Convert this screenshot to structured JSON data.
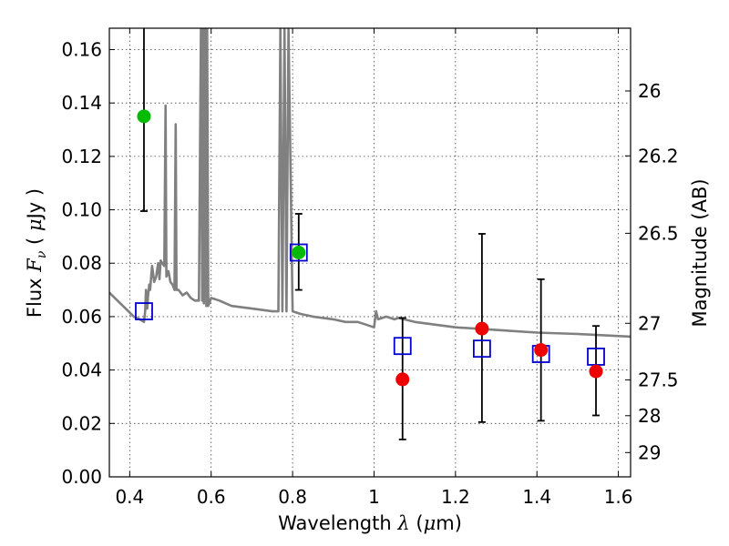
{
  "chart_data": {
    "type": "scatter",
    "xlabel": "Wavelength",
    "xlabel_symbol": "λ",
    "xlabel_unit_open": "(",
    "xlabel_unit_mu": "μ",
    "xlabel_unit_rest": "m)",
    "ylabel": "Flux",
    "ylabel_symbol": "F",
    "ylabel_sub": "ν",
    "ylabel_unit_open": "(",
    "ylabel_unit_mu": "μ",
    "ylabel_unit_rest": "Jy )",
    "y2label": "Magnitude (AB)",
    "xlim": [
      0.35,
      1.63
    ],
    "ylim": [
      0.0,
      0.168
    ],
    "grid": true,
    "x_ticks": [
      0.4,
      0.6,
      0.8,
      1.0,
      1.2,
      1.4,
      1.6
    ],
    "x_tick_labels": [
      "0.4",
      "0.6",
      "0.8",
      "1",
      "1.2",
      "1.4",
      "1.6"
    ],
    "y_ticks": [
      0.0,
      0.02,
      0.04,
      0.06,
      0.08,
      0.1,
      0.12,
      0.14,
      0.16
    ],
    "y_tick_labels": [
      "0.00",
      "0.02",
      "0.04",
      "0.06",
      "0.08",
      "0.10",
      "0.12",
      "0.14",
      "0.16"
    ],
    "y2_ticks": [
      {
        "label": "26",
        "flux": 0.1445
      },
      {
        "label": "26.2",
        "flux": 0.1202
      },
      {
        "label": "26.5",
        "flux": 0.0912
      },
      {
        "label": "27",
        "flux": 0.0575
      },
      {
        "label": "27.5",
        "flux": 0.0363
      },
      {
        "label": "28",
        "flux": 0.0229
      },
      {
        "label": "29",
        "flux": 0.0091
      }
    ],
    "colors": {
      "model": "#808080",
      "model_flux": "#0000cc",
      "observed_green": "#00bb00",
      "observed_red": "#ee0000",
      "errorbar": "#000000"
    },
    "model_spectrum": {
      "x": [
        0.35,
        0.37,
        0.39,
        0.41,
        0.425,
        0.435,
        0.438,
        0.44,
        0.443,
        0.445,
        0.448,
        0.45,
        0.455,
        0.46,
        0.465,
        0.47,
        0.473,
        0.476,
        0.48,
        0.485,
        0.488,
        0.49,
        0.495,
        0.5,
        0.505,
        0.51,
        0.513,
        0.515,
        0.52,
        0.53,
        0.54,
        0.55,
        0.56,
        0.57,
        0.575,
        0.578,
        0.58,
        0.582,
        0.585,
        0.588,
        0.59,
        0.593,
        0.6,
        0.62,
        0.65,
        0.7,
        0.75,
        0.765,
        0.77,
        0.775,
        0.78,
        0.785,
        0.79,
        0.8,
        0.82,
        0.85,
        0.9,
        0.93,
        0.96,
        0.98,
        1.0,
        1.005,
        1.01,
        1.02,
        1.03,
        1.04,
        1.05,
        1.06,
        1.1,
        1.2,
        1.3,
        1.4,
        1.5,
        1.63
      ],
      "y": [
        0.069,
        0.066,
        0.063,
        0.06,
        0.059,
        0.058,
        0.062,
        0.07,
        0.063,
        0.068,
        0.072,
        0.07,
        0.079,
        0.073,
        0.075,
        0.08,
        0.074,
        0.081,
        0.08,
        0.079,
        0.139,
        0.075,
        0.077,
        0.073,
        0.072,
        0.07,
        0.132,
        0.07,
        0.07,
        0.068,
        0.069,
        0.067,
        0.066,
        0.066,
        0.168,
        0.066,
        0.168,
        0.065,
        0.168,
        0.064,
        0.168,
        0.064,
        0.067,
        0.066,
        0.064,
        0.063,
        0.062,
        0.062,
        0.168,
        0.062,
        0.168,
        0.062,
        0.168,
        0.062,
        0.061,
        0.06,
        0.059,
        0.058,
        0.058,
        0.057,
        0.056,
        0.062,
        0.059,
        0.0595,
        0.06,
        0.0595,
        0.059,
        0.0595,
        0.058,
        0.056,
        0.055,
        0.054,
        0.0535,
        0.0525
      ]
    },
    "series": [
      {
        "role": "model_flux",
        "marker": "open-square",
        "x": [
          0.435,
          0.815,
          1.07,
          1.265,
          1.41,
          1.545
        ],
        "y": [
          0.062,
          0.084,
          0.049,
          0.048,
          0.046,
          0.045
        ]
      },
      {
        "role": "observed_green",
        "marker": "filled-circle",
        "x": [
          0.435,
          0.815
        ],
        "y": [
          0.135,
          0.084
        ],
        "yerr_low": [
          0.0355,
          0.014
        ],
        "yerr_high": [
          0.033,
          0.0145
        ]
      },
      {
        "role": "observed_red",
        "marker": "filled-circle",
        "x": [
          1.07,
          1.265,
          1.41,
          1.545
        ],
        "y": [
          0.0365,
          0.0555,
          0.0475,
          0.0395
        ],
        "yerr_low": [
          0.0225,
          0.035,
          0.0265,
          0.0165
        ],
        "yerr_high": [
          0.023,
          0.0355,
          0.0265,
          0.017
        ]
      }
    ]
  }
}
